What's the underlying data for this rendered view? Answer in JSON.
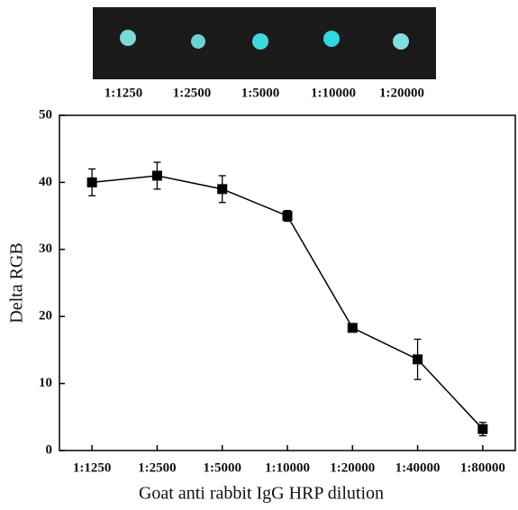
{
  "chart_data": {
    "type": "line",
    "strip_labels": [
      "1:1250",
      "1:2500",
      "1:5000",
      "1:10000",
      "1:20000"
    ],
    "xlabel": "Goat anti rabbit IgG HRP dilution",
    "ylabel": "Delta RGB",
    "categories": [
      "1:1250",
      "1:2500",
      "1:5000",
      "1:10000",
      "1:20000",
      "1:40000",
      "1:80000"
    ],
    "series": [
      {
        "values": [
          40,
          41,
          39,
          35,
          18.3,
          13.6,
          3.2
        ],
        "errors": [
          2,
          2,
          2,
          0.8,
          0.5,
          3,
          1
        ],
        "color": "#000000"
      }
    ],
    "ylim": [
      0,
      50
    ],
    "yticks": [
      0,
      10,
      20,
      30,
      40,
      50
    ]
  }
}
